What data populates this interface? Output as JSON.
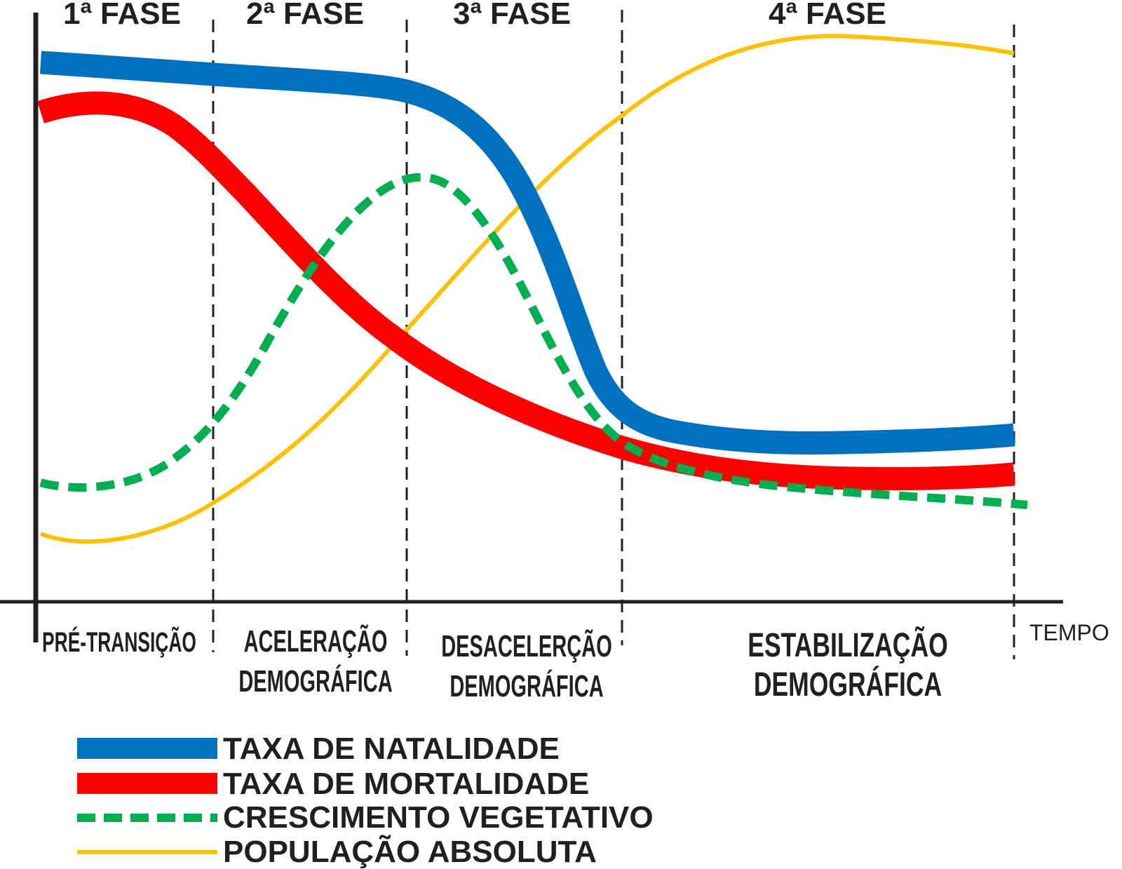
{
  "phases": [
    {
      "title": "1ª FASE",
      "label_lines": [
        "PRÉ-TRANSIÇÃO"
      ]
    },
    {
      "title": "2ª FASE",
      "label_lines": [
        "ACELERAÇÃO",
        "DEMOGRÁFICA"
      ]
    },
    {
      "title": "3ª FASE",
      "label_lines": [
        "DESACELERÇÃO",
        "DEMOGRÁFICA"
      ]
    },
    {
      "title": "4ª FASE",
      "label_lines": [
        "ESTABILIZAÇÃO",
        "DEMOGRÁFICA"
      ]
    }
  ],
  "x_axis_label": "TEMPO",
  "series": [
    {
      "key": "natalidade",
      "name": "TAXA DE NATALIDADE",
      "color": "#0070c0",
      "style": "solid"
    },
    {
      "key": "mortalidade",
      "name": "TAXA DE MORTALIDADE",
      "color": "#ff0000",
      "style": "solid"
    },
    {
      "key": "crescimento",
      "name": "CRESCIMENTO VEGETATIVO",
      "color": "#00b050",
      "style": "dashed"
    },
    {
      "key": "populacao",
      "name": "POPULAÇÃO ABSOLUTA",
      "color": "#ffc000",
      "style": "solid"
    }
  ]
}
